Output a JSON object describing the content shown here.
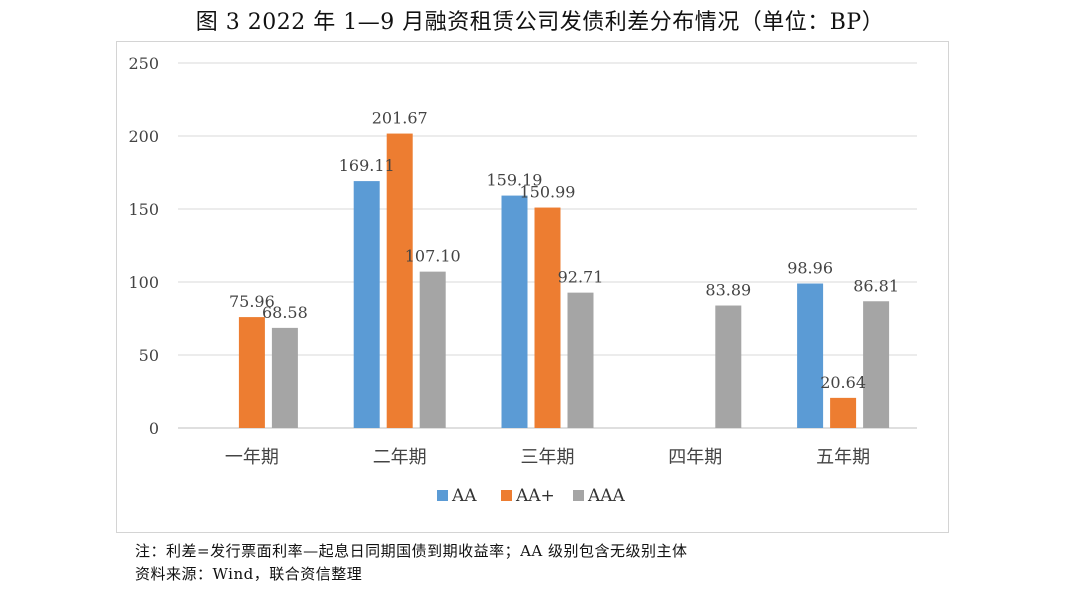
{
  "title": "图 3   2022 年 1—9 月融资租赁公司发债利差分布情况（单位：BP）",
  "note": "注：利差=发行票面利率—起息日同期国债到期收益率；AA 级别包含无级别主体",
  "source": "资料来源：Wind，联合资信整理",
  "chart_data": {
    "type": "bar",
    "title": "2022 年 1—9 月融资租赁公司发债利差分布情况（单位：BP）",
    "categories": [
      "一年期",
      "二年期",
      "三年期",
      "四年期",
      "五年期"
    ],
    "series": [
      {
        "name": "AA",
        "color": "#5B9BD5",
        "values": [
          null,
          169.11,
          159.19,
          null,
          98.96
        ]
      },
      {
        "name": "AA+",
        "color": "#ED7D31",
        "values": [
          75.96,
          201.67,
          150.99,
          null,
          20.64
        ]
      },
      {
        "name": "AAA",
        "color": "#A5A5A5",
        "values": [
          68.58,
          107.1,
          92.71,
          83.89,
          86.81
        ]
      }
    ],
    "yticks": [
      0,
      50,
      100,
      150,
      200,
      250
    ],
    "ylim": [
      0,
      250
    ],
    "grid": true,
    "legend_position": "bottom",
    "xlabel": "",
    "ylabel": ""
  }
}
